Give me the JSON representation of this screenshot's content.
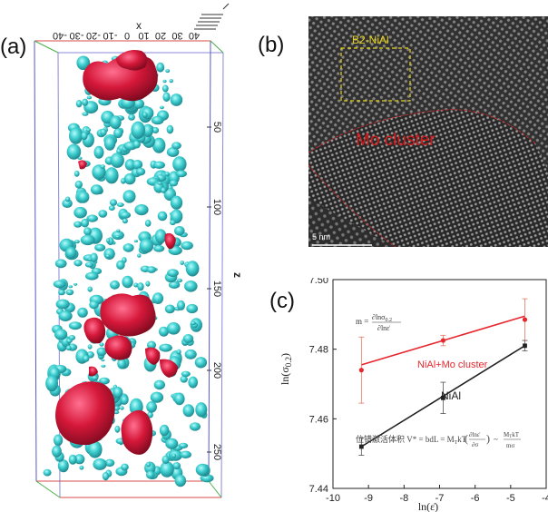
{
  "panels": {
    "a": {
      "label": "(a)"
    },
    "b": {
      "label": "(b)"
    },
    "c": {
      "label": "(c)"
    }
  },
  "apt": {
    "top_ticks": [
      "40",
      "30",
      "20",
      "10",
      "0",
      "-10",
      "-20",
      "-30",
      "-40"
    ],
    "x_axis_letter": "x",
    "z_ticks": [
      "50",
      "100",
      "150",
      "200",
      "250"
    ],
    "z_axis_letter": "z",
    "colors": {
      "ni_al_particles": "#3ecfd0",
      "mo_clusters": "#d6183a",
      "box_red": "#d84a4a",
      "box_blue": "#5757c9",
      "box_green": "#49b049"
    }
  },
  "tem": {
    "region_label": "B2-NiAl",
    "cluster_label": "Mo cluster",
    "scale_bar_label": "5 nm",
    "colors": {
      "region_box": "#e6d21a",
      "cluster_text": "#d81c1c",
      "boundary": "#c42a2a"
    }
  },
  "chart_data": {
    "type": "line",
    "x": [
      -9.2,
      -6.9,
      -4.6
    ],
    "xlabel": "ln(ε̇)",
    "ylabel": "ln(σ0.2)",
    "xlim": [
      -10,
      -4
    ],
    "ylim": [
      7.44,
      7.5
    ],
    "x_ticks": [
      "-10",
      "-9",
      "-8",
      "-7",
      "-6",
      "-5",
      "-4"
    ],
    "y_ticks": [
      "7.44",
      "7.46",
      "7.48",
      "7.50"
    ],
    "series": [
      {
        "name": "NiAl+Mo cluster",
        "color": "#e8262d",
        "values": [
          7.474,
          7.4825,
          7.4885
        ],
        "errors": [
          0.0095,
          0.0015,
          0.006
        ],
        "fit": [
          7.4755,
          7.4825,
          7.4895
        ]
      },
      {
        "name": "NiAl",
        "color": "#222222",
        "values": [
          7.452,
          7.466,
          7.481
        ],
        "errors": [
          0.0025,
          0.0045,
          0.0015
        ],
        "fit": [
          7.452,
          7.4665,
          7.481
        ]
      }
    ],
    "annotations": {
      "m_equation": "m = ∂lnσ0.2 / ∂lnε̇",
      "activation_volume": "位错激活体积 V* = bdL = M_T kT (∂lnε̇/∂σ) ~ M_T kT / mσ"
    }
  }
}
